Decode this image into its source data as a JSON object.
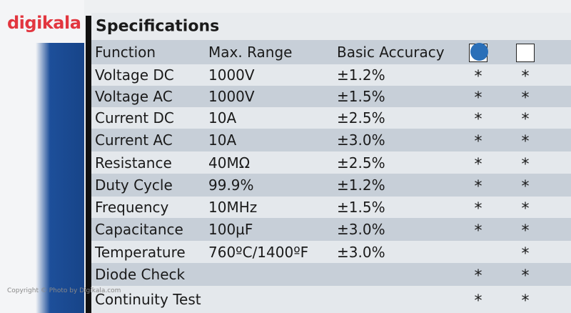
{
  "logo": "digikala",
  "copyright": "Copyright © Photo by Digikala.com",
  "table": {
    "title": "Specifications",
    "header": [
      "Function",
      "Max. Range",
      "Basic Accuracy"
    ],
    "rows": [
      [
        "Voltage DC",
        "1000V",
        "±1.2%",
        "*",
        "*"
      ],
      [
        "Voltage AC",
        "1000V",
        "±1.5%",
        "*",
        "*"
      ],
      [
        "Current DC",
        "10A",
        "±2.5%",
        "*",
        "*"
      ],
      [
        "Current AC",
        "10A",
        "±3.0%",
        "*",
        "*"
      ],
      [
        "Resistance",
        "40MΩ",
        "±2.5%",
        "*",
        "*"
      ],
      [
        "Duty Cycle",
        "99.9%",
        "±1.2%",
        "*",
        "*"
      ],
      [
        "Frequency",
        "10MHz",
        "±1.5%",
        "*",
        "*"
      ],
      [
        "Capacitance",
        "100µF",
        "±3.0%",
        "*",
        "*"
      ],
      [
        "Temperature",
        "760ºC/1400ºF",
        "±3.0%",
        null,
        "*"
      ],
      [
        "Diode Check",
        null,
        null,
        "*",
        "*"
      ],
      [
        "Continuity Test",
        null,
        null,
        "*",
        "*"
      ]
    ]
  }
}
